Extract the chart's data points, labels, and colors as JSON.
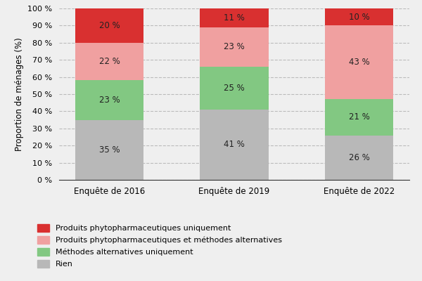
{
  "categories": [
    "Enquête de 2016",
    "Enquête de 2019",
    "Enquête de 2022"
  ],
  "series": {
    "Rien": [
      35,
      41,
      26
    ],
    "Méthodes alternatives uniquement": [
      23,
      25,
      21
    ],
    "Produits phytopharmaceutiques et méthodes alternatives": [
      22,
      23,
      43
    ],
    "Produits phytopharmaceutiques uniquement": [
      20,
      11,
      10
    ]
  },
  "colors": {
    "Rien": "#b8b8b8",
    "Méthodes alternatives uniquement": "#82c882",
    "Produits phytopharmaceutiques et méthodes alternatives": "#f0a0a0",
    "Produits phytopharmaceutiques uniquement": "#d93030"
  },
  "ylabel": "Proportion de ménages (%)",
  "ylim": [
    0,
    100
  ],
  "yticks": [
    0,
    10,
    20,
    30,
    40,
    50,
    60,
    70,
    80,
    90,
    100
  ],
  "ytick_labels": [
    "0 %",
    "10 %",
    "20 %",
    "30 %",
    "40 %",
    "50 %",
    "60 %",
    "70 %",
    "80 %",
    "90 %",
    "100 %"
  ],
  "bar_width": 0.55,
  "legend_order": [
    "Produits phytopharmaceutiques uniquement",
    "Produits phytopharmaceutiques et méthodes alternatives",
    "Méthodes alternatives uniquement",
    "Rien"
  ],
  "grid_color": "#bbbbbb",
  "grid_linestyle": "--",
  "background_color": "#efefef",
  "plot_bg_color": "#efefef",
  "annotation_fontsize": 8.5
}
